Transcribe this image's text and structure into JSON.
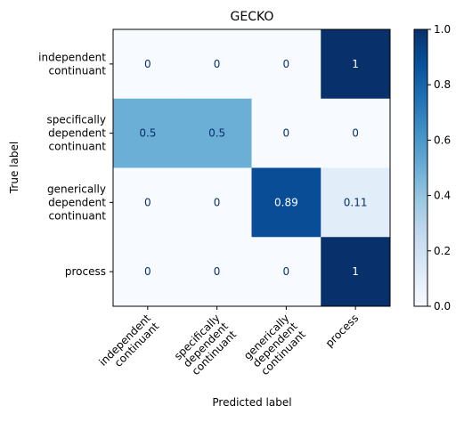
{
  "chart_data": {
    "type": "heatmap",
    "title": "GECKO",
    "xlabel": "Predicted label",
    "ylabel": "True label",
    "row_labels": [
      [
        "independent",
        "continuant"
      ],
      [
        "specifically",
        "dependent",
        "continuant"
      ],
      [
        "generically",
        "dependent",
        "continuant"
      ],
      [
        "process"
      ]
    ],
    "col_labels": [
      [
        "independent",
        "continuant"
      ],
      [
        "specifically",
        "dependent",
        "continuant"
      ],
      [
        "generically",
        "dependent",
        "continuant"
      ],
      [
        "process"
      ]
    ],
    "values": [
      [
        0,
        0,
        0,
        1
      ],
      [
        0.5,
        0.5,
        0,
        0
      ],
      [
        0,
        0,
        0.89,
        0.11
      ],
      [
        0,
        0,
        0,
        1
      ]
    ],
    "value_labels": [
      [
        "0",
        "0",
        "0",
        "1"
      ],
      [
        "0.5",
        "0.5",
        "0",
        "0"
      ],
      [
        "0",
        "0",
        "0.89",
        "0.11"
      ],
      [
        "0",
        "0",
        "0",
        "1"
      ]
    ],
    "colorbar": {
      "range": [
        0.0,
        1.0
      ],
      "ticks": [
        "0.0",
        "0.2",
        "0.4",
        "0.6",
        "0.8",
        "1.0"
      ],
      "colormap": "Blues"
    },
    "colors": {
      "low": "#f7fbff",
      "high": "#08306b",
      "text_light": "#ffffff",
      "text_dark": "#08306b"
    }
  }
}
